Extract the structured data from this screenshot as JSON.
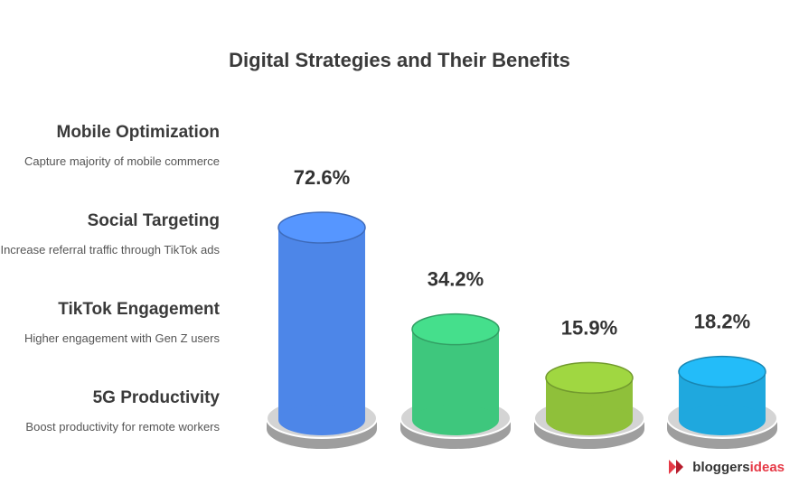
{
  "chart_data": {
    "type": "bar",
    "title": "Digital Strategies and Their Benefits",
    "categories": [
      "Mobile Optimization",
      "Social Targeting",
      "TikTok Engagement",
      "5G Productivity"
    ],
    "descriptions": [
      "Capture majority of mobile commerce",
      "Increase referral traffic through TikTok ads",
      "Higher engagement with Gen Z users",
      "Boost productivity for remote workers"
    ],
    "values": [
      72.6,
      34.2,
      15.9,
      18.2
    ],
    "value_labels": [
      "72.6%",
      "34.2%",
      "15.9%",
      "18.2%"
    ],
    "colors": [
      "#4d86e8",
      "#3ec77d",
      "#8fc03a",
      "#1fa8de"
    ],
    "ylim": [
      0,
      80
    ],
    "grid": false
  },
  "branding": {
    "name_part1": "bloggers",
    "name_part2": "ideas",
    "icon": "bloggersideas-logo-icon"
  }
}
